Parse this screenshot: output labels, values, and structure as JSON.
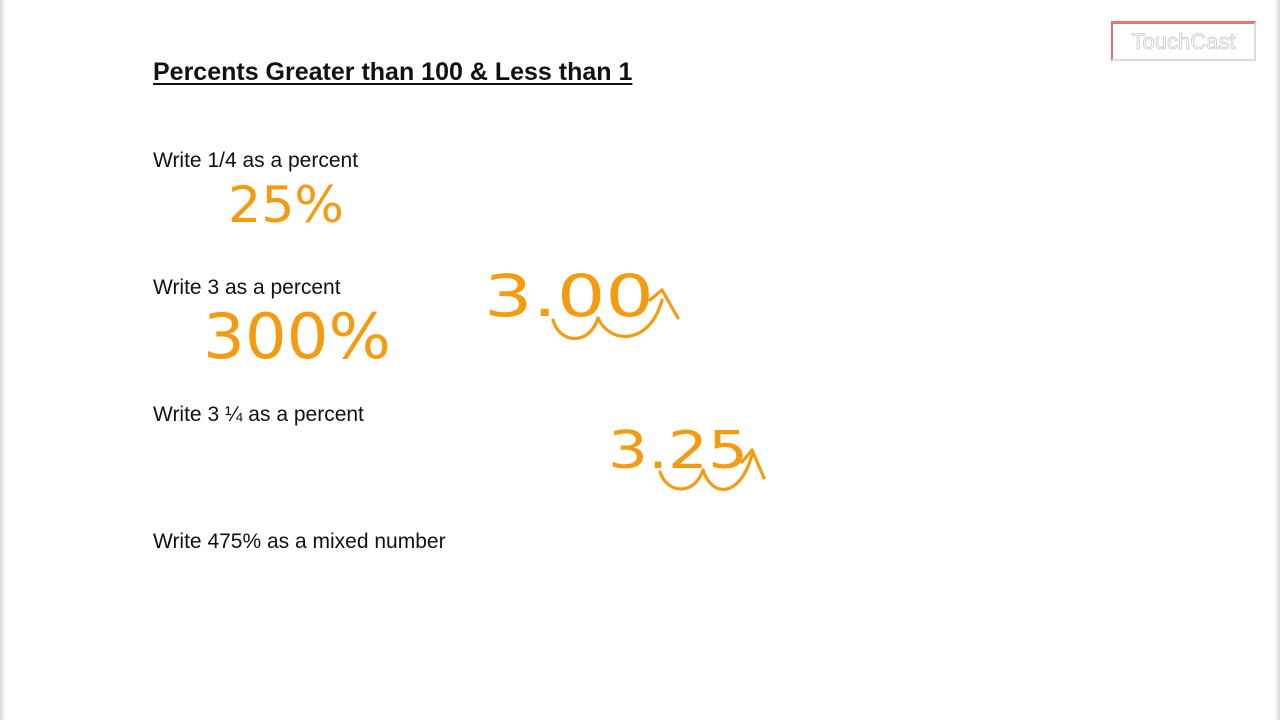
{
  "document": {
    "title": "Percents Greater than 100 & Less than 1",
    "questions": [
      "Write 1/4 as a percent",
      "Write 3 as a percent",
      "Write 3 ¼ as a percent",
      "Write 475% as a mixed number"
    ]
  },
  "handwritten": {
    "answer_1": "25%",
    "answer_2": "300%",
    "work_2": "3.00",
    "work_3": "3.25"
  },
  "watermark": {
    "label": "TouchCast"
  },
  "colors": {
    "ink": "#f39c12",
    "watermark_accent": "#e57373",
    "text": "#111111"
  }
}
